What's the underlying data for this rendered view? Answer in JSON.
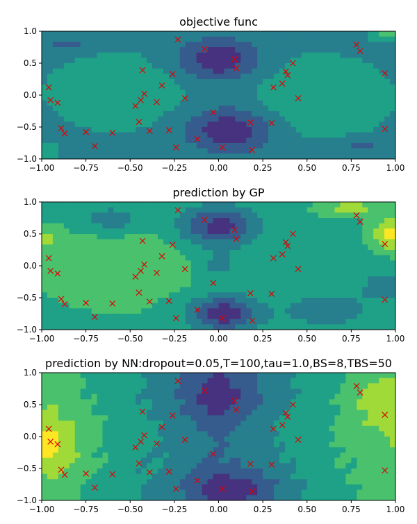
{
  "points": [
    [
      -0.23,
      0.87
    ],
    [
      -0.08,
      0.72
    ],
    [
      0.09,
      0.56
    ],
    [
      0.1,
      0.42
    ],
    [
      0.78,
      0.79
    ],
    [
      0.8,
      0.69
    ],
    [
      0.94,
      0.34
    ],
    [
      0.42,
      0.5
    ],
    [
      0.38,
      0.37
    ],
    [
      0.39,
      0.31
    ],
    [
      0.36,
      0.18
    ],
    [
      0.31,
      0.12
    ],
    [
      0.45,
      -0.05
    ],
    [
      -0.43,
      0.39
    ],
    [
      -0.26,
      0.33
    ],
    [
      -0.32,
      0.15
    ],
    [
      -0.42,
      0.02
    ],
    [
      -0.44,
      -0.08
    ],
    [
      -0.35,
      -0.11
    ],
    [
      -0.47,
      -0.17
    ],
    [
      -0.19,
      -0.05
    ],
    [
      -0.96,
      0.12
    ],
    [
      -0.95,
      -0.08
    ],
    [
      -0.91,
      -0.12
    ],
    [
      -0.03,
      -0.27
    ],
    [
      -0.45,
      -0.42
    ],
    [
      -0.39,
      -0.56
    ],
    [
      -0.28,
      -0.55
    ],
    [
      -0.89,
      -0.52
    ],
    [
      -0.87,
      -0.6
    ],
    [
      -0.75,
      -0.58
    ],
    [
      -0.6,
      -0.59
    ],
    [
      -0.7,
      -0.8
    ],
    [
      -0.24,
      -0.82
    ],
    [
      -0.12,
      -0.69
    ],
    [
      0.02,
      -0.82
    ],
    [
      0.18,
      -0.43
    ],
    [
      0.19,
      -0.86
    ],
    [
      0.3,
      -0.44
    ],
    [
      0.94,
      -0.53
    ]
  ],
  "chart_data": [
    {
      "type": "heatmap",
      "title": "objective func",
      "xlim": [
        -1.0,
        1.0
      ],
      "ylim": [
        -1.0,
        1.0
      ],
      "xticks": [
        "−1.00",
        "−0.75",
        "−0.50",
        "−0.25",
        "0.00",
        "0.25",
        "0.50",
        "0.75",
        "1.00"
      ],
      "yticks": [
        "1.0",
        "0.5",
        "0.0",
        "−0.5",
        "−1.0"
      ],
      "colormap": "viridis",
      "marker": {
        "symbol": "x",
        "color": "#e00000"
      },
      "grid": false
    },
    {
      "type": "heatmap",
      "title": "prediction by GP",
      "xlim": [
        -1.0,
        1.0
      ],
      "ylim": [
        -1.0,
        1.0
      ],
      "xticks": [
        "−1.00",
        "−0.75",
        "−0.50",
        "−0.25",
        "0.00",
        "0.25",
        "0.50",
        "0.75",
        "1.00"
      ],
      "yticks": [
        "1.0",
        "0.5",
        "0.0",
        "−0.5",
        "−1.0"
      ],
      "colormap": "viridis",
      "marker": {
        "symbol": "x",
        "color": "#e00000"
      },
      "grid": false
    },
    {
      "type": "heatmap",
      "title": "prediction by NN:dropout=0.05,T=100,tau=1.0,BS=8,TBS=50",
      "xlim": [
        -1.0,
        1.0
      ],
      "ylim": [
        -1.0,
        1.0
      ],
      "xticks": [
        "−1.00",
        "−0.75",
        "−0.50",
        "−0.25",
        "0.00",
        "0.25",
        "0.50",
        "0.75",
        "1.00"
      ],
      "yticks": [
        "1.0",
        "0.5",
        "0.0",
        "−0.5",
        "−1.0"
      ],
      "colormap": "viridis",
      "marker": {
        "symbol": "x",
        "color": "#e00000"
      },
      "grid": false
    }
  ]
}
